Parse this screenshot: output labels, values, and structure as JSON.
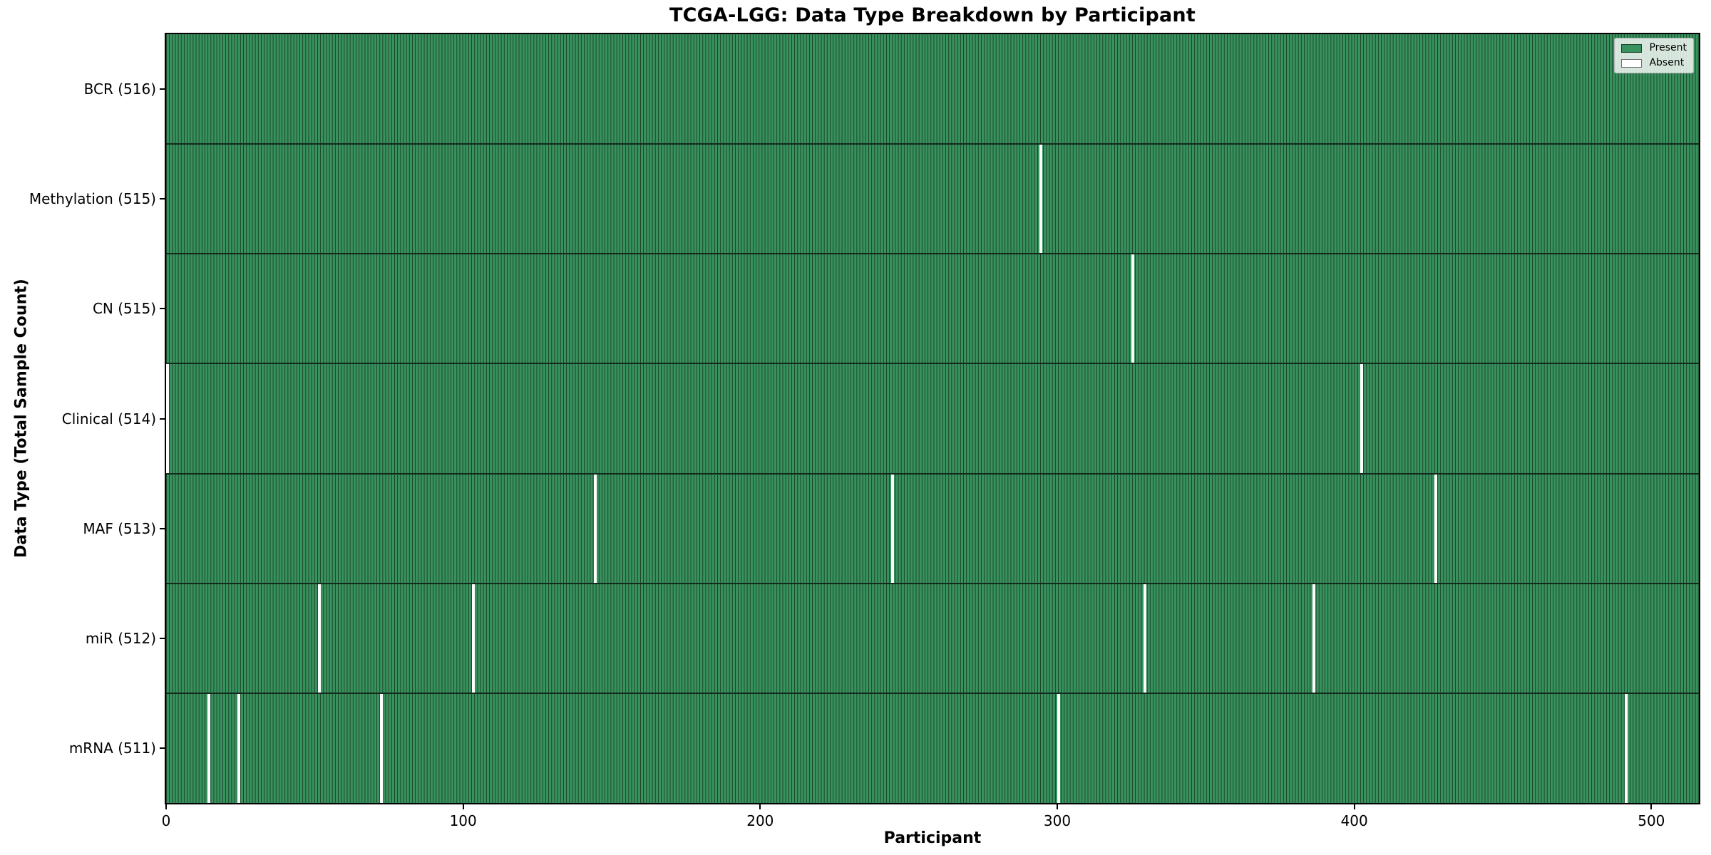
{
  "colors": {
    "present_fill": "#38925e",
    "cell_edge": "#1b4027",
    "row_separator": "#13291c",
    "absent_fill": "#ffffff",
    "spine": "#000000",
    "legend_border": "#b0b0b0"
  },
  "chart_data": {
    "type": "heatmap",
    "title": "TCGA-LGG: Data Type Breakdown by Participant",
    "xlabel": "Participant",
    "ylabel": "Data Type (Total Sample Count)",
    "n_participants": 516,
    "x_ticks": [
      0,
      100,
      200,
      300,
      400,
      500
    ],
    "legend": [
      {
        "label": "Present",
        "color": "#38925e"
      },
      {
        "label": "Absent",
        "color": "#ffffff"
      }
    ],
    "legend_position": "upper right",
    "grid": false,
    "rows": [
      {
        "label": "BCR (516)",
        "data_type": "BCR",
        "present_count": 516,
        "absent_participants": []
      },
      {
        "label": "Methylation (515)",
        "data_type": "Methylation",
        "present_count": 515,
        "absent_participants": [
          294
        ]
      },
      {
        "label": "CN (515)",
        "data_type": "CN",
        "present_count": 515,
        "absent_participants": [
          325
        ]
      },
      {
        "label": "Clinical (514)",
        "data_type": "Clinical",
        "present_count": 514,
        "absent_participants": [
          0,
          402
        ]
      },
      {
        "label": "MAF (513)",
        "data_type": "MAF",
        "present_count": 513,
        "absent_participants": [
          144,
          244,
          427
        ]
      },
      {
        "label": "miR (512)",
        "data_type": "miR",
        "present_count": 512,
        "absent_participants": [
          51,
          103,
          329,
          386
        ]
      },
      {
        "label": "mRNA (511)",
        "data_type": "mRNA",
        "present_count": 511,
        "absent_participants": [
          14,
          24,
          72,
          300,
          491
        ]
      }
    ]
  }
}
